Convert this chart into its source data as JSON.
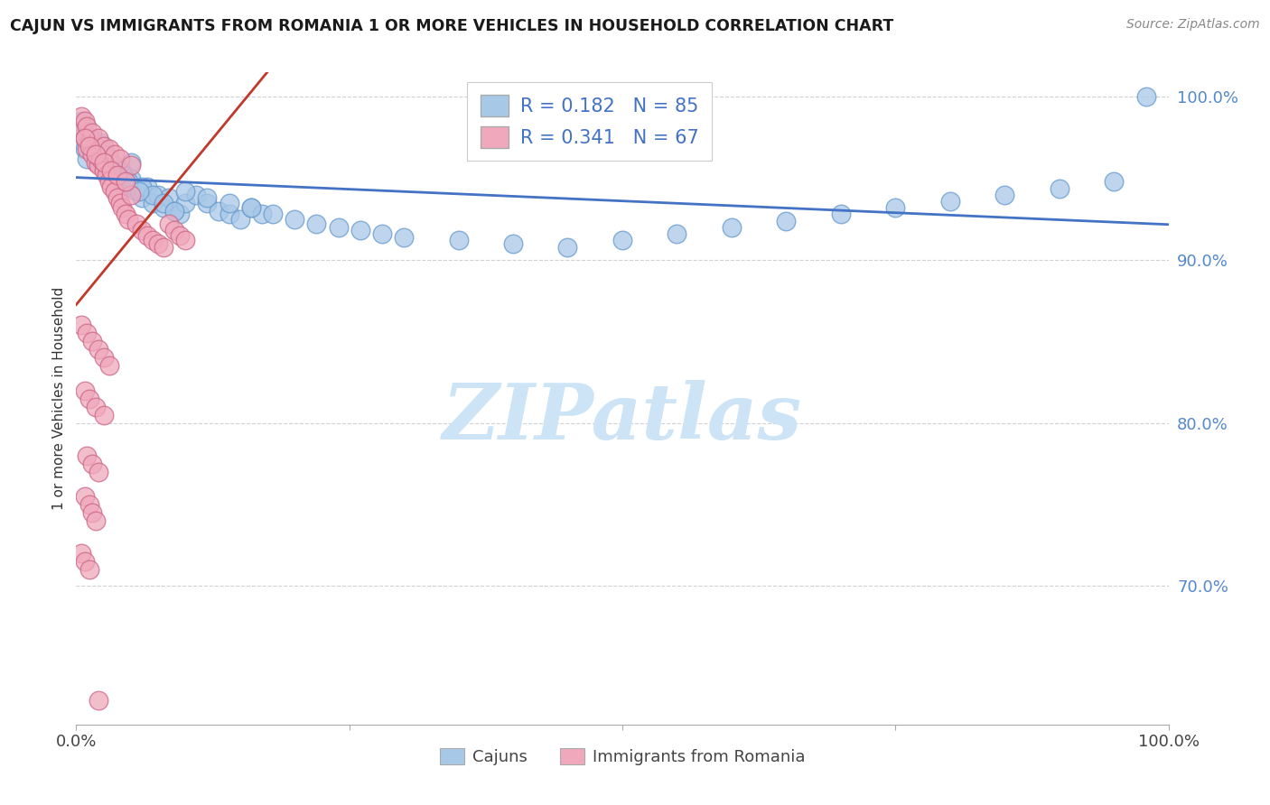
{
  "title": "CAJUN VS IMMIGRANTS FROM ROMANIA 1 OR MORE VEHICLES IN HOUSEHOLD CORRELATION CHART",
  "source": "Source: ZipAtlas.com",
  "ylabel": "1 or more Vehicles in Household",
  "cajun_R": 0.182,
  "cajun_N": 85,
  "romania_R": 0.341,
  "romania_N": 67,
  "cajun_color": "#a8c8e8",
  "cajun_edge_color": "#6699cc",
  "romania_color": "#f0a8bc",
  "romania_edge_color": "#cc6688",
  "cajun_line_color": "#4472c4",
  "romania_line_color": "#c0392b",
  "stat_color": "#4472c4",
  "ytick_color": "#5588cc",
  "xlim": [
    0.0,
    1.0
  ],
  "ylim": [
    0.615,
    1.015
  ],
  "ytick_values": [
    0.7,
    0.8,
    0.9,
    1.0
  ],
  "watermark_text": "ZIPatlas",
  "watermark_color": "#cce4f5",
  "background": "#ffffff",
  "grid_color": "#cccccc",
  "bottom_label_cajun": "Cajuns",
  "bottom_label_romania": "Immigrants from Romania",
  "cajun_x": [
    0.005,
    0.008,
    0.01,
    0.012,
    0.015,
    0.018,
    0.02,
    0.022,
    0.025,
    0.028,
    0.03,
    0.032,
    0.035,
    0.038,
    0.04,
    0.042,
    0.045,
    0.048,
    0.05,
    0.055,
    0.06,
    0.065,
    0.07,
    0.075,
    0.08,
    0.085,
    0.09,
    0.095,
    0.1,
    0.11,
    0.12,
    0.13,
    0.14,
    0.15,
    0.16,
    0.17,
    0.008,
    0.01,
    0.015,
    0.02,
    0.025,
    0.03,
    0.035,
    0.04,
    0.05,
    0.06,
    0.07,
    0.08,
    0.09,
    0.1,
    0.12,
    0.14,
    0.16,
    0.18,
    0.2,
    0.22,
    0.24,
    0.26,
    0.28,
    0.3,
    0.35,
    0.4,
    0.45,
    0.5,
    0.55,
    0.6,
    0.65,
    0.7,
    0.75,
    0.8,
    0.85,
    0.9,
    0.95,
    0.005,
    0.007,
    0.012,
    0.018,
    0.023,
    0.028,
    0.033,
    0.038,
    0.043,
    0.048,
    0.058,
    0.98
  ],
  "cajun_y": [
    0.973,
    0.968,
    0.962,
    0.97,
    0.975,
    0.965,
    0.96,
    0.972,
    0.958,
    0.955,
    0.963,
    0.96,
    0.957,
    0.953,
    0.95,
    0.955,
    0.948,
    0.945,
    0.96,
    0.942,
    0.938,
    0.945,
    0.935,
    0.94,
    0.932,
    0.938,
    0.93,
    0.928,
    0.935,
    0.94,
    0.935,
    0.93,
    0.928,
    0.925,
    0.932,
    0.928,
    0.978,
    0.975,
    0.972,
    0.968,
    0.965,
    0.962,
    0.958,
    0.955,
    0.95,
    0.945,
    0.94,
    0.935,
    0.93,
    0.942,
    0.938,
    0.935,
    0.932,
    0.928,
    0.925,
    0.922,
    0.92,
    0.918,
    0.916,
    0.914,
    0.912,
    0.91,
    0.908,
    0.912,
    0.916,
    0.92,
    0.924,
    0.928,
    0.932,
    0.936,
    0.94,
    0.944,
    0.948,
    0.985,
    0.98,
    0.975,
    0.97,
    0.965,
    0.962,
    0.958,
    0.955,
    0.952,
    0.948,
    0.942,
    1.0
  ],
  "romania_x": [
    0.005,
    0.008,
    0.01,
    0.012,
    0.015,
    0.018,
    0.02,
    0.022,
    0.025,
    0.028,
    0.03,
    0.032,
    0.035,
    0.038,
    0.04,
    0.042,
    0.045,
    0.048,
    0.05,
    0.055,
    0.06,
    0.065,
    0.07,
    0.075,
    0.08,
    0.085,
    0.09,
    0.095,
    0.1,
    0.005,
    0.008,
    0.01,
    0.015,
    0.02,
    0.025,
    0.03,
    0.035,
    0.04,
    0.05,
    0.008,
    0.012,
    0.018,
    0.025,
    0.032,
    0.038,
    0.045,
    0.005,
    0.01,
    0.015,
    0.02,
    0.025,
    0.03,
    0.008,
    0.012,
    0.018,
    0.025,
    0.01,
    0.015,
    0.02,
    0.008,
    0.012,
    0.015,
    0.018,
    0.005,
    0.008,
    0.012,
    0.02
  ],
  "romania_y": [
    0.98,
    0.975,
    0.968,
    0.972,
    0.965,
    0.96,
    0.958,
    0.962,
    0.955,
    0.952,
    0.948,
    0.945,
    0.942,
    0.938,
    0.935,
    0.932,
    0.928,
    0.925,
    0.94,
    0.922,
    0.918,
    0.915,
    0.912,
    0.91,
    0.908,
    0.922,
    0.918,
    0.915,
    0.912,
    0.988,
    0.985,
    0.982,
    0.978,
    0.975,
    0.97,
    0.968,
    0.965,
    0.962,
    0.958,
    0.975,
    0.97,
    0.965,
    0.96,
    0.955,
    0.952,
    0.948,
    0.86,
    0.855,
    0.85,
    0.845,
    0.84,
    0.835,
    0.82,
    0.815,
    0.81,
    0.805,
    0.78,
    0.775,
    0.77,
    0.755,
    0.75,
    0.745,
    0.74,
    0.72,
    0.715,
    0.71,
    0.63
  ]
}
